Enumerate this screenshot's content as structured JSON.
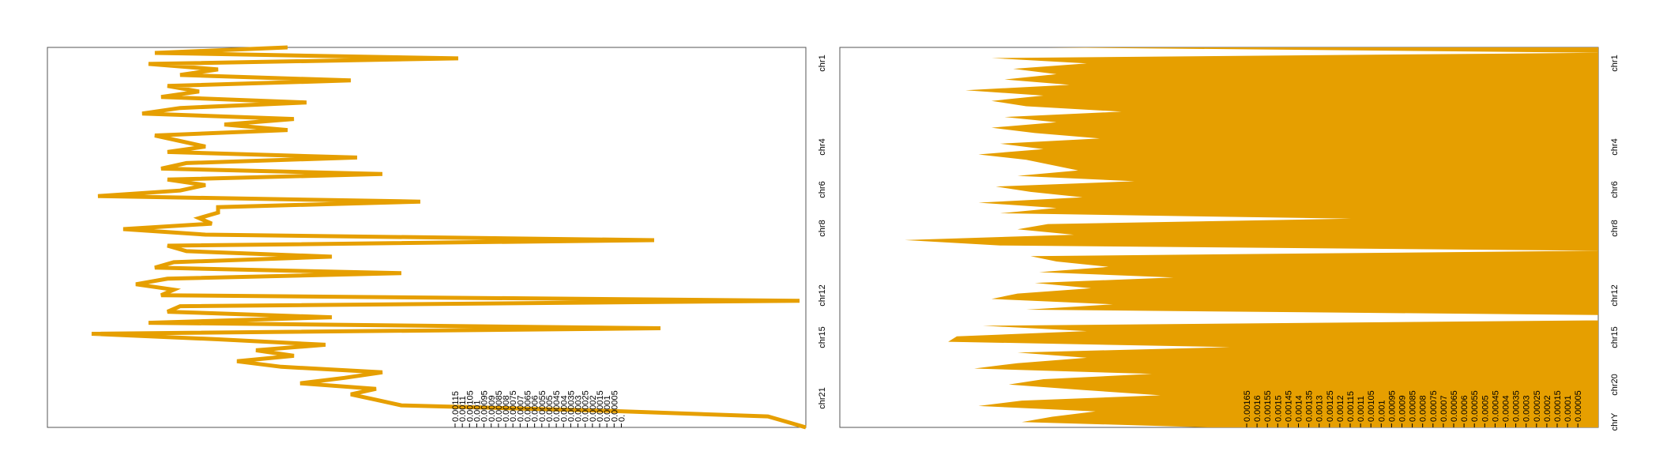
{
  "colors": {
    "accent": "#E69F00",
    "frame": "#555555",
    "text": "#000000"
  },
  "chart_data": [
    {
      "type": "line",
      "title": "",
      "xlabel": "",
      "ylabel": "",
      "orientation": "value axis horizontal (increasing right-to-left), chromosome axis vertical (top-to-bottom)",
      "xlim": [
        0,
        0.0012
      ],
      "value_ticks": [
        "0.00115",
        "0.0011",
        "0.00105",
        "0.001",
        "0.00095",
        "0.0009",
        "0.00085",
        "0.0008",
        "0.00075",
        "0.0007",
        "0.00065",
        "0.0006",
        "0.00055",
        "0.0005",
        "0.00045",
        "0.0004",
        "0.00035",
        "0.0003",
        "0.00025",
        "0.0002",
        "0.00015",
        "0.0001",
        "0.00005",
        "0."
      ],
      "category_labels": [
        "chr1",
        "chr4",
        "chr6",
        "chr8",
        "chr12",
        "chr15",
        "chr21"
      ],
      "series": [
        {
          "values": [
            0.00082,
            0.00103,
            0.00055,
            0.00104,
            0.00093,
            0.00099,
            0.00072,
            0.00101,
            0.00096,
            0.00102,
            0.00079,
            0.00099,
            0.00105,
            0.00081,
            0.00092,
            0.00082,
            0.00103,
            0.00099,
            0.00095,
            0.00101,
            0.00071,
            0.00098,
            0.00102,
            0.00067,
            0.00101,
            0.00095,
            0.00099,
            0.00112,
            0.00061,
            0.00093,
            0.00093,
            0.00096,
            0.00094,
            0.00108,
            0.00095,
            0.00024,
            0.00101,
            0.00098,
            0.00075,
            0.001,
            0.00103,
            0.00064,
            0.00101,
            0.00106,
            0.001,
            0.00102,
            1e-05,
            0.00099,
            0.00101,
            0.00075,
            0.00104,
            0.00023,
            0.00113,
            0.00093,
            0.00076,
            0.00087,
            0.00081,
            0.0009,
            0.00083,
            0.00067,
            0.00073,
            0.0008,
            0.00068,
            0.00072,
            0.00068,
            0.00064,
            0.00031,
            6e-05,
            3e-05,
            0.0
          ]
        }
      ]
    },
    {
      "type": "area",
      "title": "",
      "xlabel": "",
      "ylabel": "",
      "orientation": "value axis horizontal (increasing right-to-left), chromosome axis vertical (top-to-bottom)",
      "xlim": [
        0,
        0.00175
      ],
      "value_ticks": [
        "0.00165",
        "0.0016",
        "0.00155",
        "0.0015",
        "0.00145",
        "0.0014",
        "0.00135",
        "0.0013",
        "0.00125",
        "0.0012",
        "0.00115",
        "0.0011",
        "0.00105",
        "0.001",
        "0.00095",
        "0.0009",
        "0.00085",
        "0.0008",
        "0.00075",
        "0.0007",
        "0.00065",
        "0.0006",
        "0.00055",
        "0.0005",
        "0.00045",
        "0.0004",
        "0.00035",
        "0.0003",
        "0.00025",
        "0.0002",
        "0.00015",
        "0.0001",
        "0.00005"
      ],
      "category_labels": [
        "chr1",
        "chr4",
        "chr6",
        "chr8",
        "chr12",
        "chr15",
        "chr20",
        "chrY"
      ],
      "series": [
        {
          "values": [
            0.00127,
            0.0,
            0.0014,
            0.00118,
            0.00135,
            0.00125,
            0.00137,
            0.00122,
            0.00146,
            0.00128,
            0.0014,
            0.00132,
            0.0011,
            0.00137,
            0.00125,
            0.0014,
            0.0013,
            0.00115,
            0.00138,
            0.00128,
            0.00143,
            0.00132,
            0.00126,
            0.0012,
            0.00134,
            0.00107,
            0.00139,
            0.00131,
            0.00119,
            0.00143,
            0.00125,
            0.00138,
            0.00057,
            0.00127,
            0.00134,
            0.00121,
            0.0016,
            0.00138,
            0.0,
            0.00131,
            0.00125,
            0.00113,
            0.00129,
            0.00098,
            0.0013,
            0.00117,
            0.00134,
            0.0014,
            0.00112,
            0.00132,
            0.0,
            0.0,
            0.00142,
            0.00118,
            0.00148,
            0.0015,
            0.00085,
            0.00134,
            0.00118,
            0.00134,
            0.00144,
            0.00103,
            0.00128,
            0.00136,
            0.00119,
            0.00101,
            0.00133,
            0.00143,
            0.00116,
            0.00126,
            0.00133,
            0.0009
          ]
        }
      ]
    }
  ]
}
